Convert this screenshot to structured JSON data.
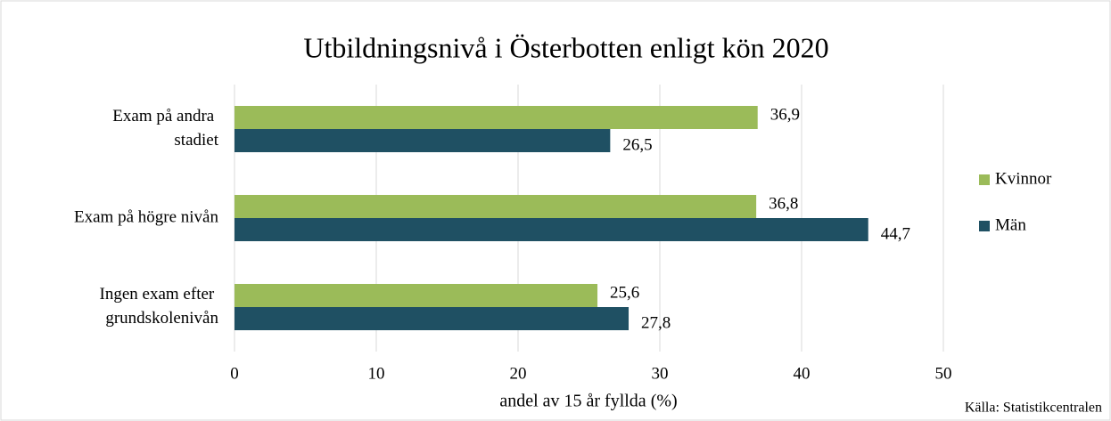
{
  "chart_data": {
    "type": "bar",
    "orientation": "horizontal",
    "title": "Utbildningsnivå i Österbotten enligt kön 2020",
    "x_label": "andel av 15 år fyllda (%)",
    "source": "Källa: Statistikcentralen",
    "categories": [
      "Exam på andra stadiet",
      "Exam på högre nivån",
      "Ingen exam efter grundskolenivån"
    ],
    "series": [
      {
        "name": "Kvinnor",
        "color": "#9bbb59",
        "values": [
          36.9,
          36.8,
          25.6
        ],
        "value_labels": [
          "36,9",
          "36,8",
          "25,6"
        ]
      },
      {
        "name": "Män",
        "color": "#1f5063",
        "values": [
          26.5,
          44.7,
          27.8
        ],
        "value_labels": [
          "26,5",
          "44,7",
          "27,8"
        ]
      }
    ],
    "xlim": [
      0,
      50
    ],
    "xticks": [
      0,
      10,
      20,
      30,
      40,
      50
    ],
    "grid": true,
    "legend": "right"
  }
}
